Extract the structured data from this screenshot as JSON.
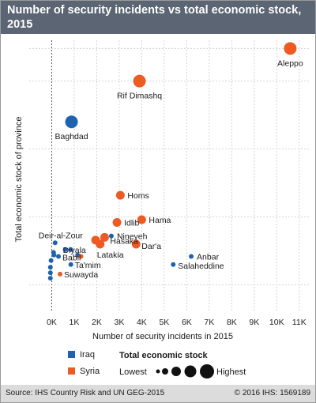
{
  "title": "Number of security incidents vs total economic stock, 2015",
  "footer": {
    "source": "Source: IHS Country Risk and UN GEG-2015",
    "copyright": "© 2016 IHS: 1569189"
  },
  "colors": {
    "iraq": "#1f63b0",
    "syria": "#ee5a24",
    "grid": "#c8c8c8",
    "zero_line": "#555555",
    "header": "#5b6573"
  },
  "legend": {
    "iraq": "Iraq",
    "syria": "Syria",
    "size_title": "Total economic stock",
    "lowest": "Lowest",
    "highest": "Highest"
  },
  "chart_data": {
    "type": "scatter",
    "title": "Number of security incidents vs total economic stock, 2015",
    "xlabel": "Number of security incidents in 2015",
    "ylabel": "Total economic stock of province",
    "xlim": [
      -1000,
      11500
    ],
    "x_ticks": [
      0,
      1000,
      2000,
      3000,
      4000,
      5000,
      6000,
      7000,
      8000,
      9000,
      10000,
      11000
    ],
    "x_tick_labels": [
      "0K",
      "1K",
      "2K",
      "3K",
      "4K",
      "5K",
      "6K",
      "7K",
      "8K",
      "9K",
      "10K",
      "11K"
    ],
    "y_unit_note": "relative scale (no tick labels shown)",
    "ylim": [
      0,
      100
    ],
    "y_grid": [
      10,
      35,
      60,
      85,
      97
    ],
    "grid": true,
    "series": [
      {
        "name": "Iraq",
        "points": [
          {
            "label": "Baghdad",
            "x": 880,
            "y": 70,
            "size": 3
          },
          {
            "label": "Nineveh",
            "x": 2650,
            "y": 28,
            "size": 1
          },
          {
            "label": "Anbar",
            "x": 6200,
            "y": 20.5,
            "size": 1
          },
          {
            "label": "Salaheddine",
            "x": 5400,
            "y": 17.5,
            "size": 1
          },
          {
            "label": "Deir-al-Zour",
            "x": 150,
            "y": 25.5,
            "size": 1
          },
          {
            "label": "Diyala",
            "x": 600,
            "y": 23,
            "size": 1
          },
          {
            "label": "Babil",
            "x": 300,
            "y": 20.5,
            "size": 1
          },
          {
            "label": "Ta'mim",
            "x": 850,
            "y": 17.5,
            "size": 1
          },
          {
            "label": "",
            "x": 80,
            "y": 22,
            "size": 1
          },
          {
            "label": "",
            "x": 1150,
            "y": 21,
            "size": 1
          },
          {
            "label": "",
            "x": 850,
            "y": 23,
            "size": 1
          },
          {
            "label": "",
            "x": -30,
            "y": 19,
            "size": 1
          },
          {
            "label": "",
            "x": -60,
            "y": 16.5,
            "size": 1
          },
          {
            "label": "",
            "x": -60,
            "y": 14.5,
            "size": 1
          },
          {
            "label": "",
            "x": -60,
            "y": 12.5,
            "size": 1
          },
          {
            "label": "",
            "x": 100,
            "y": 21,
            "size": 1
          }
        ]
      },
      {
        "name": "Syria",
        "points": [
          {
            "label": "Aleppo",
            "x": 10600,
            "y": 97,
            "size": 3
          },
          {
            "label": "Rif Dimashq",
            "x": 3900,
            "y": 85,
            "size": 3
          },
          {
            "label": "Homs",
            "x": 3050,
            "y": 43,
            "size": 2
          },
          {
            "label": "Hama",
            "x": 4000,
            "y": 34,
            "size": 2
          },
          {
            "label": "Idlib",
            "x": 2900,
            "y": 33,
            "size": 2
          },
          {
            "label": "Hasaka",
            "x": 2350,
            "y": 27.5,
            "size": 2
          },
          {
            "label": "Latakia",
            "x": 2150,
            "y": 25,
            "size": 2
          },
          {
            "label": "Dar'a",
            "x": 3750,
            "y": 25,
            "size": 2
          },
          {
            "label": "Suwayda",
            "x": 370,
            "y": 14,
            "size": 1
          },
          {
            "label": "",
            "x": 1950,
            "y": 26.5,
            "size": 2
          },
          {
            "label": "",
            "x": 1300,
            "y": 20.5,
            "size": 1
          }
        ]
      }
    ]
  }
}
